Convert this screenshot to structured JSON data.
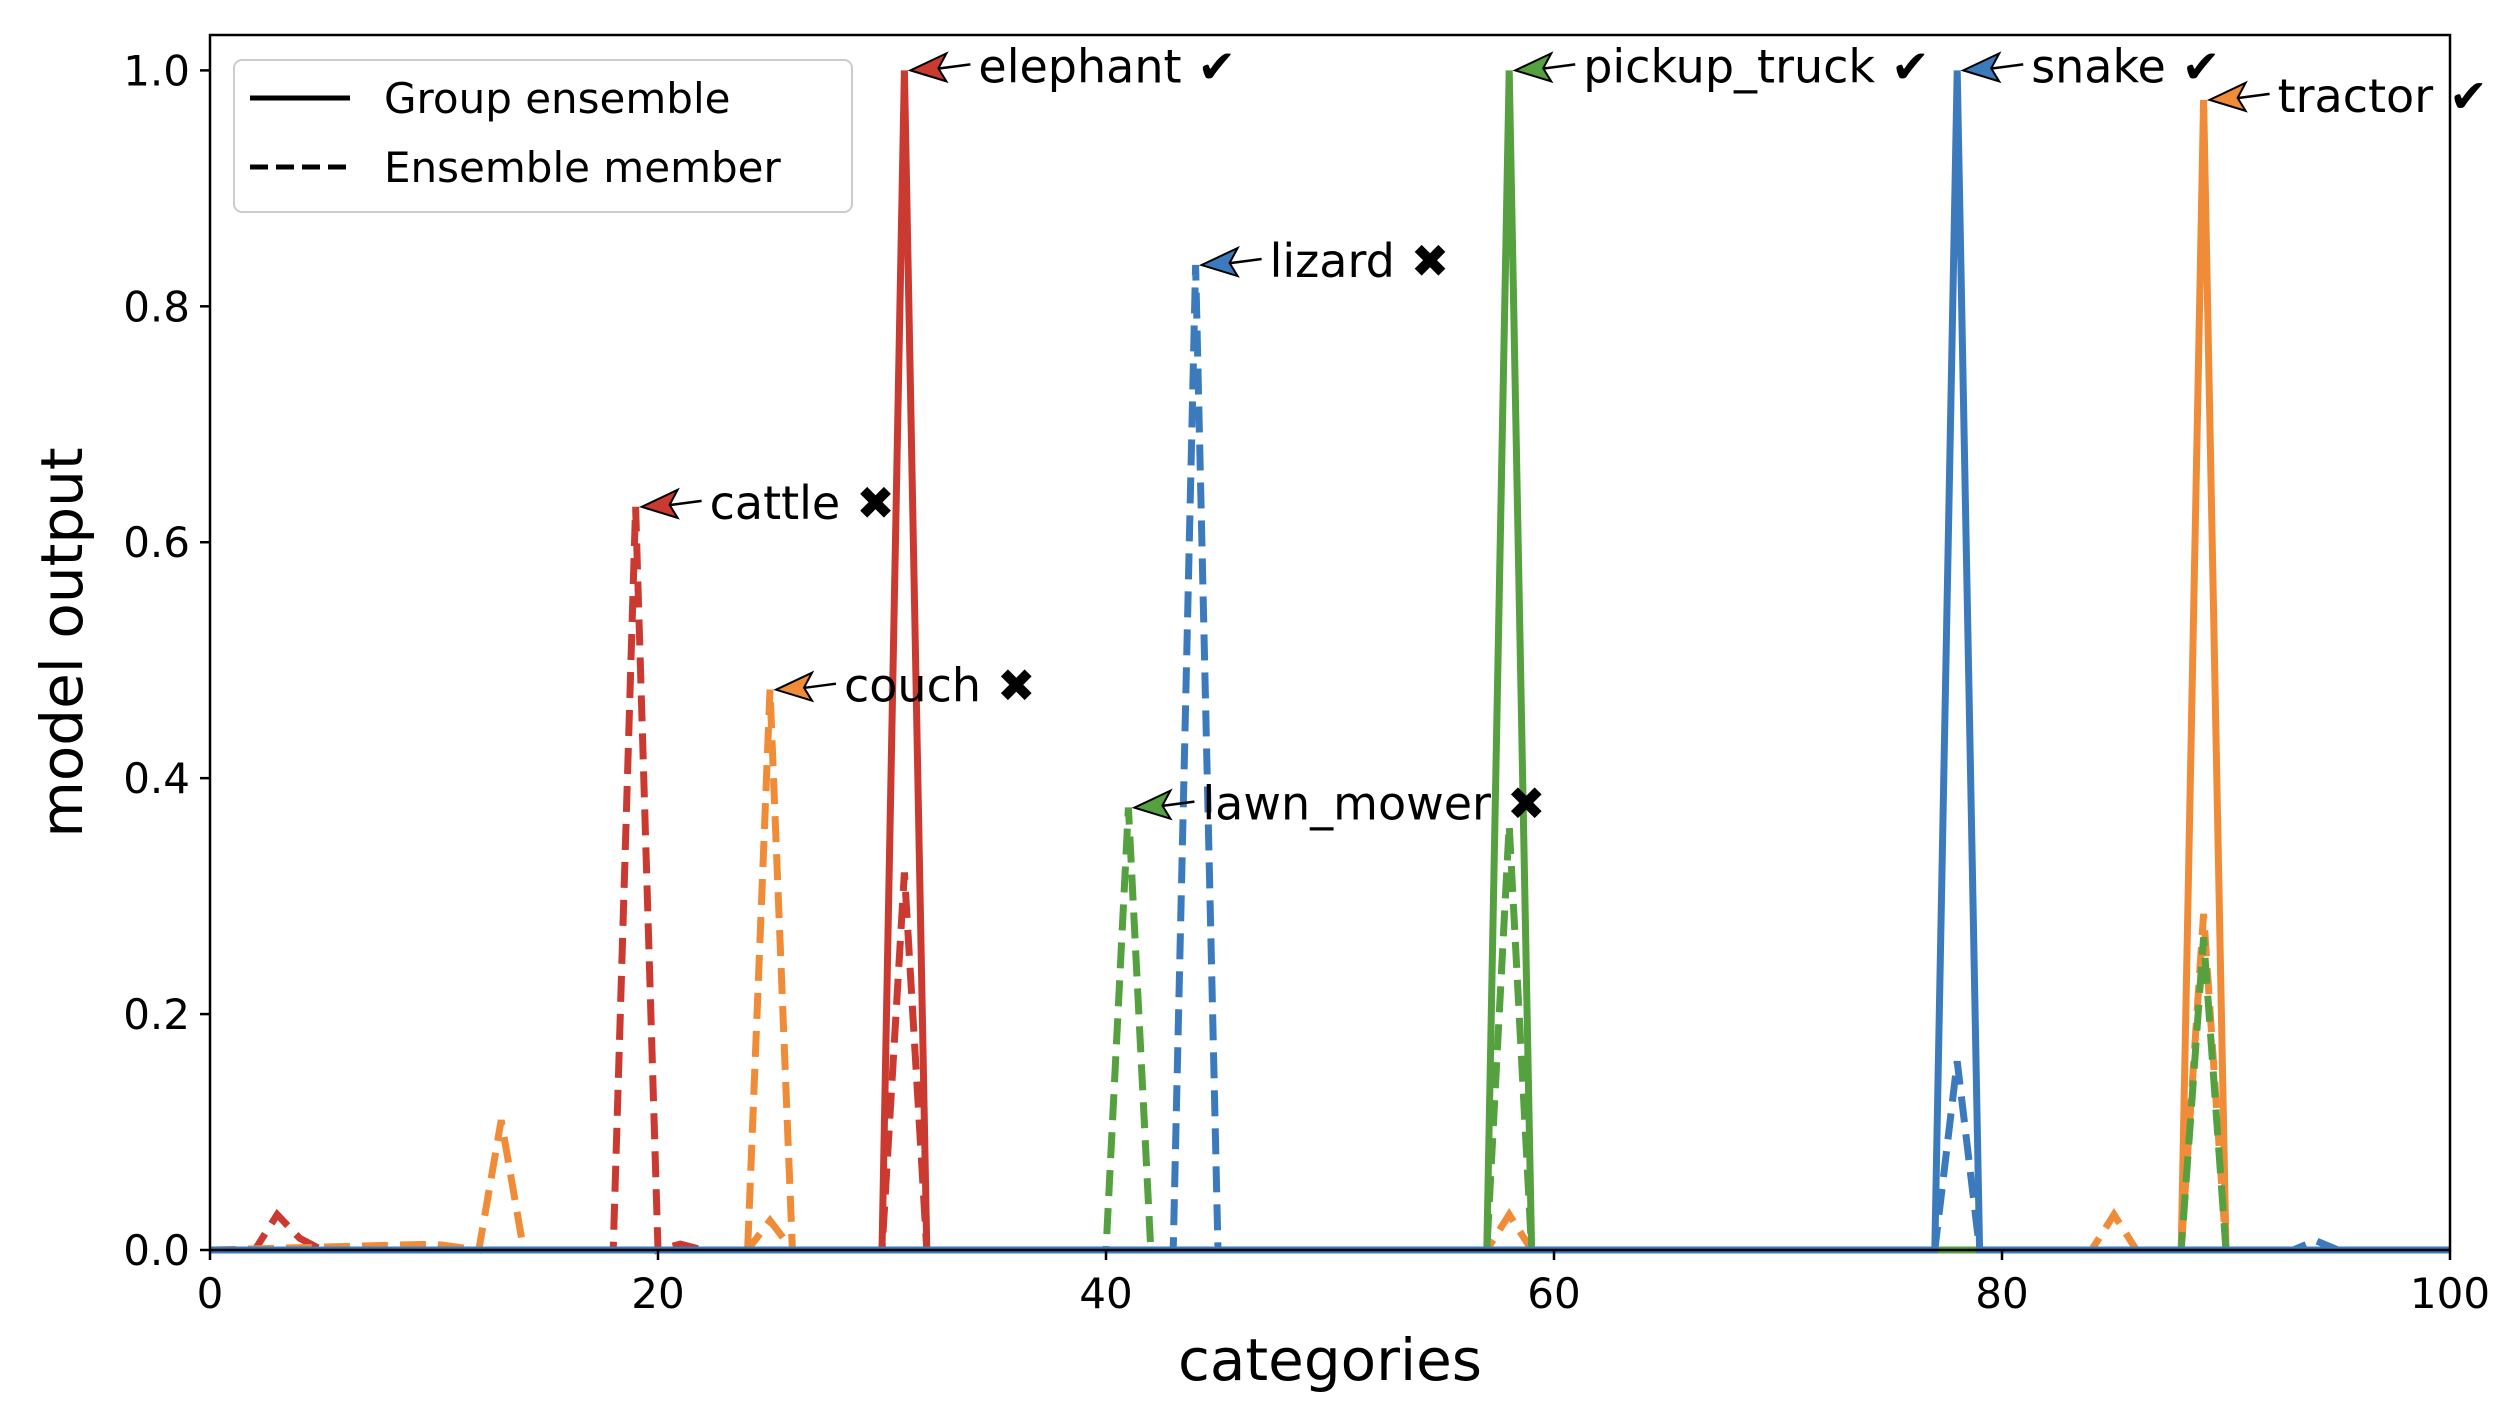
{
  "chart_data": {
    "type": "line",
    "xlabel": "categories",
    "ylabel": "model output",
    "xlim": [
      0,
      100
    ],
    "ylim": [
      0,
      1.03
    ],
    "x_ticks": [
      0,
      20,
      40,
      60,
      80,
      100
    ],
    "y_ticks": [
      0.0,
      0.2,
      0.4,
      0.6,
      0.8,
      1.0
    ],
    "x_tick_labels": [
      "0",
      "20",
      "40",
      "60",
      "80",
      "100"
    ],
    "y_tick_labels": [
      "0.0",
      "0.2",
      "0.4",
      "0.6",
      "0.8",
      "1.0"
    ],
    "grid": false,
    "legend": {
      "placement": "top-left",
      "entries": [
        {
          "label": "Group ensemble",
          "style": "solid"
        },
        {
          "label": "Ensemble member",
          "style": "dashed"
        }
      ]
    },
    "colors": {
      "red": "#cb3a30",
      "orange": "#f08b38",
      "green": "#55a03f",
      "blue": "#3b7bbd"
    },
    "series": [
      {
        "color": "red",
        "style": "dashed",
        "points": [
          [
            0,
            0
          ],
          [
            2,
            0
          ],
          [
            3,
            0.03
          ],
          [
            4,
            0.01
          ],
          [
            5,
            0
          ],
          [
            18,
            0
          ],
          [
            19,
            0.63
          ],
          [
            20,
            0
          ],
          [
            21,
            0.005
          ],
          [
            22,
            0
          ],
          [
            30,
            0
          ],
          [
            31,
            0.32
          ],
          [
            32,
            0
          ],
          [
            100,
            0
          ]
        ]
      },
      {
        "color": "red",
        "style": "solid",
        "points": [
          [
            0,
            0
          ],
          [
            30,
            0
          ],
          [
            31,
            1.0
          ],
          [
            32,
            0
          ],
          [
            100,
            0
          ]
        ]
      },
      {
        "color": "orange",
        "style": "dashed",
        "points": [
          [
            0,
            0
          ],
          [
            10,
            0.005
          ],
          [
            12,
            0
          ],
          [
            13,
            0.11
          ],
          [
            14,
            0
          ],
          [
            24,
            0
          ],
          [
            25,
            0.475
          ],
          [
            26,
            0
          ],
          [
            100,
            0
          ]
        ]
      },
      {
        "color": "orange",
        "style": "dashed",
        "points": [
          [
            0,
            0
          ],
          [
            24,
            0
          ],
          [
            25,
            0.025
          ],
          [
            26,
            0
          ],
          [
            57,
            0
          ],
          [
            58,
            0.03
          ],
          [
            59,
            0
          ],
          [
            84,
            0
          ],
          [
            85,
            0.03
          ],
          [
            86,
            0
          ],
          [
            88,
            0
          ],
          [
            89,
            0.285
          ],
          [
            90,
            0
          ],
          [
            100,
            0
          ]
        ]
      },
      {
        "color": "orange",
        "style": "solid",
        "points": [
          [
            0,
            0
          ],
          [
            88,
            0
          ],
          [
            89,
            0.975
          ],
          [
            90,
            0
          ],
          [
            100,
            0
          ]
        ]
      },
      {
        "color": "green",
        "style": "dashed",
        "points": [
          [
            0,
            0
          ],
          [
            40,
            0
          ],
          [
            41,
            0.375
          ],
          [
            42,
            0
          ],
          [
            57,
            0
          ],
          [
            58,
            0.36
          ],
          [
            59,
            0
          ],
          [
            88,
            0
          ],
          [
            89,
            0.265
          ],
          [
            90,
            0
          ],
          [
            100,
            0
          ]
        ]
      },
      {
        "color": "green",
        "style": "solid",
        "points": [
          [
            0,
            0
          ],
          [
            57,
            0
          ],
          [
            58,
            1.0
          ],
          [
            59,
            0
          ],
          [
            100,
            0
          ]
        ]
      },
      {
        "color": "blue",
        "style": "dashed",
        "points": [
          [
            0,
            0
          ],
          [
            43,
            0
          ],
          [
            44,
            0.835
          ],
          [
            45,
            0
          ],
          [
            77,
            0
          ],
          [
            78,
            0.16
          ],
          [
            79,
            0
          ],
          [
            93,
            0
          ],
          [
            94,
            0.008
          ],
          [
            95,
            0
          ],
          [
            100,
            0
          ]
        ]
      },
      {
        "color": "blue",
        "style": "solid",
        "points": [
          [
            0,
            0
          ],
          [
            77,
            0
          ],
          [
            78,
            1.0
          ],
          [
            79,
            0
          ],
          [
            100,
            0
          ]
        ]
      }
    ],
    "annotations": [
      {
        "label": "cattle",
        "mark": "✖",
        "color": "red",
        "x": 19,
        "y": 0.63
      },
      {
        "label": "couch",
        "mark": "✖",
        "color": "orange",
        "x": 25,
        "y": 0.475
      },
      {
        "label": "elephant",
        "mark": "✔",
        "color": "red",
        "x": 31,
        "y": 1.0
      },
      {
        "label": "lawn_mower",
        "mark": "✖",
        "color": "green",
        "x": 41,
        "y": 0.375
      },
      {
        "label": "lizard",
        "mark": "✖",
        "color": "blue",
        "x": 44,
        "y": 0.835
      },
      {
        "label": "pickup_truck",
        "mark": "✔",
        "color": "green",
        "x": 58,
        "y": 1.0
      },
      {
        "label": "snake",
        "mark": "✔",
        "color": "blue",
        "x": 78,
        "y": 1.0
      },
      {
        "label": "tractor",
        "mark": "✔",
        "color": "orange",
        "x": 89,
        "y": 0.975
      }
    ]
  }
}
